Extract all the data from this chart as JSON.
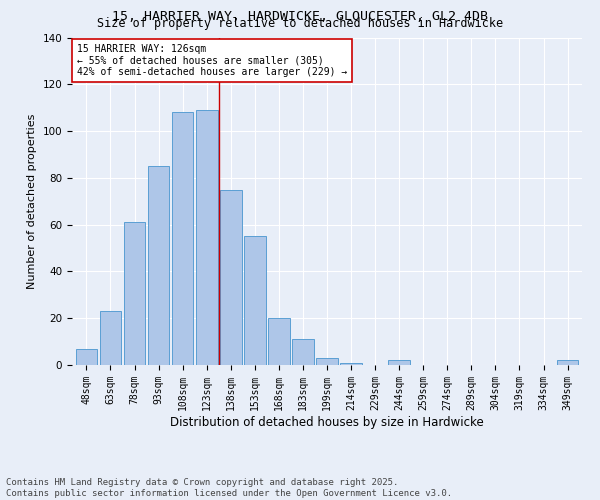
{
  "title_line1": "15, HARRIER WAY, HARDWICKE, GLOUCESTER, GL2 4DB",
  "title_line2": "Size of property relative to detached houses in Hardwicke",
  "xlabel": "Distribution of detached houses by size in Hardwicke",
  "ylabel": "Number of detached properties",
  "categories": [
    "48sqm",
    "63sqm",
    "78sqm",
    "93sqm",
    "108sqm",
    "123sqm",
    "138sqm",
    "153sqm",
    "168sqm",
    "183sqm",
    "199sqm",
    "214sqm",
    "229sqm",
    "244sqm",
    "259sqm",
    "274sqm",
    "289sqm",
    "304sqm",
    "319sqm",
    "334sqm",
    "349sqm"
  ],
  "values": [
    7,
    23,
    61,
    85,
    108,
    109,
    75,
    55,
    20,
    11,
    3,
    1,
    0,
    2,
    0,
    0,
    0,
    0,
    0,
    0,
    2
  ],
  "bar_color": "#aec6e8",
  "bar_edge_color": "#5a9fd4",
  "background_color": "#e8eef8",
  "grid_color": "#ffffff",
  "vline_x": 5.5,
  "vline_color": "#cc0000",
  "annotation_title": "15 HARRIER WAY: 126sqm",
  "annotation_line1": "← 55% of detached houses are smaller (305)",
  "annotation_line2": "42% of semi-detached houses are larger (229) →",
  "annotation_box_color": "#ffffff",
  "annotation_box_edge": "#cc0000",
  "ylim": [
    0,
    140
  ],
  "yticks": [
    0,
    20,
    40,
    60,
    80,
    100,
    120,
    140
  ],
  "footer_line1": "Contains HM Land Registry data © Crown copyright and database right 2025.",
  "footer_line2": "Contains public sector information licensed under the Open Government Licence v3.0.",
  "title_fontsize": 9.5,
  "subtitle_fontsize": 8.5,
  "axis_label_fontsize": 8,
  "tick_fontsize": 7,
  "footer_fontsize": 6.5,
  "annot_fontsize": 7
}
